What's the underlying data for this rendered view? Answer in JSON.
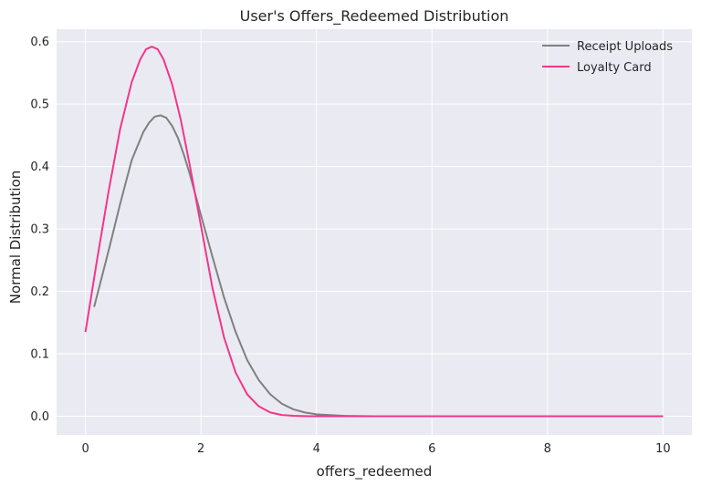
{
  "chart_data": {
    "type": "line",
    "title": "User's Offers_Redeemed Distribution",
    "xlabel": "offers_redeemed",
    "ylabel": "Normal Distribution",
    "xlim": [
      -0.5,
      10.5
    ],
    "ylim": [
      -0.03,
      0.62
    ],
    "xticks": [
      0,
      2,
      4,
      6,
      8,
      10
    ],
    "xtick_labels": [
      "0",
      "2",
      "4",
      "6",
      "8",
      "10"
    ],
    "yticks": [
      0.0,
      0.1,
      0.2,
      0.3,
      0.4,
      0.5,
      0.6
    ],
    "ytick_labels": [
      "0.0",
      "0.1",
      "0.2",
      "0.3",
      "0.4",
      "0.5",
      "0.6"
    ],
    "grid": true,
    "legend_position": "top-right",
    "series": [
      {
        "name": "Receipt Uploads",
        "color": "#808080",
        "x": [
          0.15,
          0.4,
          0.6,
          0.8,
          1.0,
          1.1,
          1.2,
          1.3,
          1.4,
          1.5,
          1.6,
          1.7,
          1.8,
          2.0,
          2.2,
          2.4,
          2.6,
          2.8,
          3.0,
          3.2,
          3.4,
          3.6,
          3.8,
          4.0,
          4.5,
          5.0,
          6.0,
          8.0,
          10.0
        ],
        "y": [
          0.175,
          0.265,
          0.34,
          0.41,
          0.455,
          0.47,
          0.48,
          0.482,
          0.478,
          0.465,
          0.446,
          0.42,
          0.39,
          0.322,
          0.255,
          0.19,
          0.135,
          0.09,
          0.058,
          0.035,
          0.02,
          0.011,
          0.006,
          0.003,
          0.0005,
          0.0,
          0.0,
          0.0,
          0.0
        ]
      },
      {
        "name": "Loyalty Card",
        "color": "#f2368a",
        "x": [
          0.0,
          0.2,
          0.4,
          0.6,
          0.8,
          0.95,
          1.05,
          1.15,
          1.25,
          1.35,
          1.5,
          1.65,
          1.8,
          2.0,
          2.2,
          2.4,
          2.6,
          2.8,
          3.0,
          3.2,
          3.4,
          3.6,
          3.8,
          4.0,
          4.5,
          5.0,
          6.0,
          8.0,
          10.0
        ],
        "y": [
          0.135,
          0.25,
          0.36,
          0.46,
          0.535,
          0.572,
          0.588,
          0.592,
          0.588,
          0.572,
          0.532,
          0.475,
          0.405,
          0.305,
          0.205,
          0.126,
          0.07,
          0.035,
          0.016,
          0.006,
          0.002,
          0.0007,
          0.0002,
          0.0,
          0.0,
          0.0,
          0.0,
          0.0,
          0.0
        ]
      }
    ]
  }
}
